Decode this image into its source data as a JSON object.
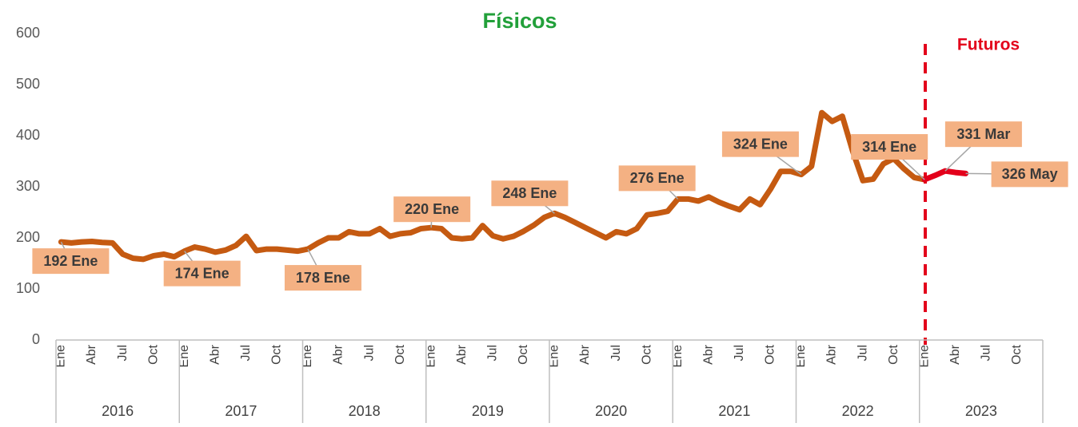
{
  "chart_data": {
    "type": "line",
    "categories": [
      "Ene",
      null,
      null,
      "Abr",
      null,
      null,
      "Jul",
      null,
      null,
      "Oct",
      null,
      null,
      "Ene",
      null,
      null,
      "Abr",
      null,
      null,
      "Jul",
      null,
      null,
      "Oct",
      null,
      null,
      "Ene",
      null,
      null,
      "Abr",
      null,
      null,
      "Jul",
      null,
      null,
      "Oct",
      null,
      null,
      "Ene",
      null,
      null,
      "Abr",
      null,
      null,
      "Jul",
      null,
      null,
      "Oct",
      null,
      null,
      "Ene",
      null,
      null,
      "Abr",
      null,
      null,
      "Jul",
      null,
      null,
      "Oct",
      null,
      null,
      "Ene",
      null,
      null,
      "Abr",
      null,
      null,
      "Jul",
      null,
      null,
      "Oct",
      null,
      null,
      "Ene",
      null,
      null,
      "Abr",
      null,
      null,
      "Jul",
      null,
      null,
      "Oct",
      null,
      null,
      "Ene",
      null,
      null,
      "Abr",
      null,
      null,
      "Jul",
      null,
      null,
      "Oct",
      null,
      null
    ],
    "year_groups": [
      "2016",
      "2017",
      "2018",
      "2019",
      "2020",
      "2021",
      "2022",
      "2023"
    ],
    "series": [
      {
        "name": "Físicos",
        "color": "#c55a11",
        "values": [
          192,
          190,
          192,
          193,
          191,
          190,
          168,
          160,
          158,
          165,
          168,
          163,
          174,
          182,
          178,
          172,
          176,
          185,
          203,
          175,
          178,
          178,
          176,
          174,
          178,
          190,
          200,
          200,
          212,
          208,
          208,
          218,
          203,
          208,
          210,
          218,
          220,
          218,
          200,
          198,
          200,
          224,
          204,
          198,
          203,
          213,
          225,
          240,
          248,
          240,
          230,
          220,
          210,
          200,
          212,
          208,
          218,
          245,
          248,
          252,
          276,
          276,
          272,
          280,
          270,
          262,
          255,
          276,
          265,
          295,
          330,
          330,
          324,
          340,
          445,
          428,
          438,
          370,
          312,
          315,
          345,
          355,
          335,
          318,
          314,
          null,
          null,
          null,
          null,
          null,
          null,
          null,
          null,
          null,
          null,
          null
        ],
        "value_labels": [
          "192 Ene",
          null,
          null,
          null,
          null,
          null,
          null,
          null,
          null,
          null,
          null,
          null,
          "174 Ene",
          null,
          null,
          null,
          null,
          null,
          null,
          null,
          null,
          null,
          null,
          null,
          "178 Ene",
          null,
          null,
          null,
          null,
          null,
          null,
          null,
          null,
          null,
          null,
          null,
          "220 Ene",
          null,
          null,
          null,
          null,
          null,
          null,
          null,
          null,
          null,
          null,
          null,
          "248 Ene",
          null,
          null,
          null,
          null,
          null,
          null,
          null,
          null,
          null,
          null,
          null,
          "276 Ene",
          null,
          null,
          null,
          null,
          null,
          null,
          null,
          null,
          null,
          null,
          null,
          "324 Ene",
          null,
          null,
          null,
          null,
          null,
          null,
          null,
          null,
          null,
          null,
          null,
          "314 Ene",
          null,
          null,
          null,
          null,
          null,
          null,
          null,
          null,
          null,
          null,
          null
        ]
      },
      {
        "name": "Futuros",
        "color": "#e3001b",
        "values": [
          null,
          null,
          null,
          null,
          null,
          null,
          null,
          null,
          null,
          null,
          null,
          null,
          null,
          null,
          null,
          null,
          null,
          null,
          null,
          null,
          null,
          null,
          null,
          null,
          null,
          null,
          null,
          null,
          null,
          null,
          null,
          null,
          null,
          null,
          null,
          null,
          null,
          null,
          null,
          null,
          null,
          null,
          null,
          null,
          null,
          null,
          null,
          null,
          null,
          null,
          null,
          null,
          null,
          null,
          null,
          null,
          null,
          null,
          null,
          null,
          null,
          null,
          null,
          null,
          null,
          null,
          null,
          null,
          null,
          null,
          null,
          null,
          null,
          null,
          null,
          null,
          null,
          null,
          null,
          null,
          null,
          null,
          null,
          null,
          314,
          322,
          331,
          328,
          326,
          null,
          null,
          null,
          null,
          null,
          null,
          null
        ],
        "value_labels": [
          null,
          null,
          null,
          null,
          null,
          null,
          null,
          null,
          null,
          null,
          null,
          null,
          null,
          null,
          null,
          null,
          null,
          null,
          null,
          null,
          null,
          null,
          null,
          null,
          null,
          null,
          null,
          null,
          null,
          null,
          null,
          null,
          null,
          null,
          null,
          null,
          null,
          null,
          null,
          null,
          null,
          null,
          null,
          null,
          null,
          null,
          null,
          null,
          null,
          null,
          null,
          null,
          null,
          null,
          null,
          null,
          null,
          null,
          null,
          null,
          null,
          null,
          null,
          null,
          null,
          null,
          null,
          null,
          null,
          null,
          null,
          null,
          null,
          null,
          null,
          null,
          null,
          null,
          null,
          null,
          null,
          null,
          null,
          null,
          null,
          null,
          "331 Mar",
          null,
          "326 May",
          null,
          null,
          null,
          null,
          null,
          null,
          null
        ]
      }
    ],
    "ylim": [
      0,
      600
    ],
    "yticks": [
      0,
      100,
      200,
      300,
      400,
      500,
      600
    ],
    "grid": false
  }
}
